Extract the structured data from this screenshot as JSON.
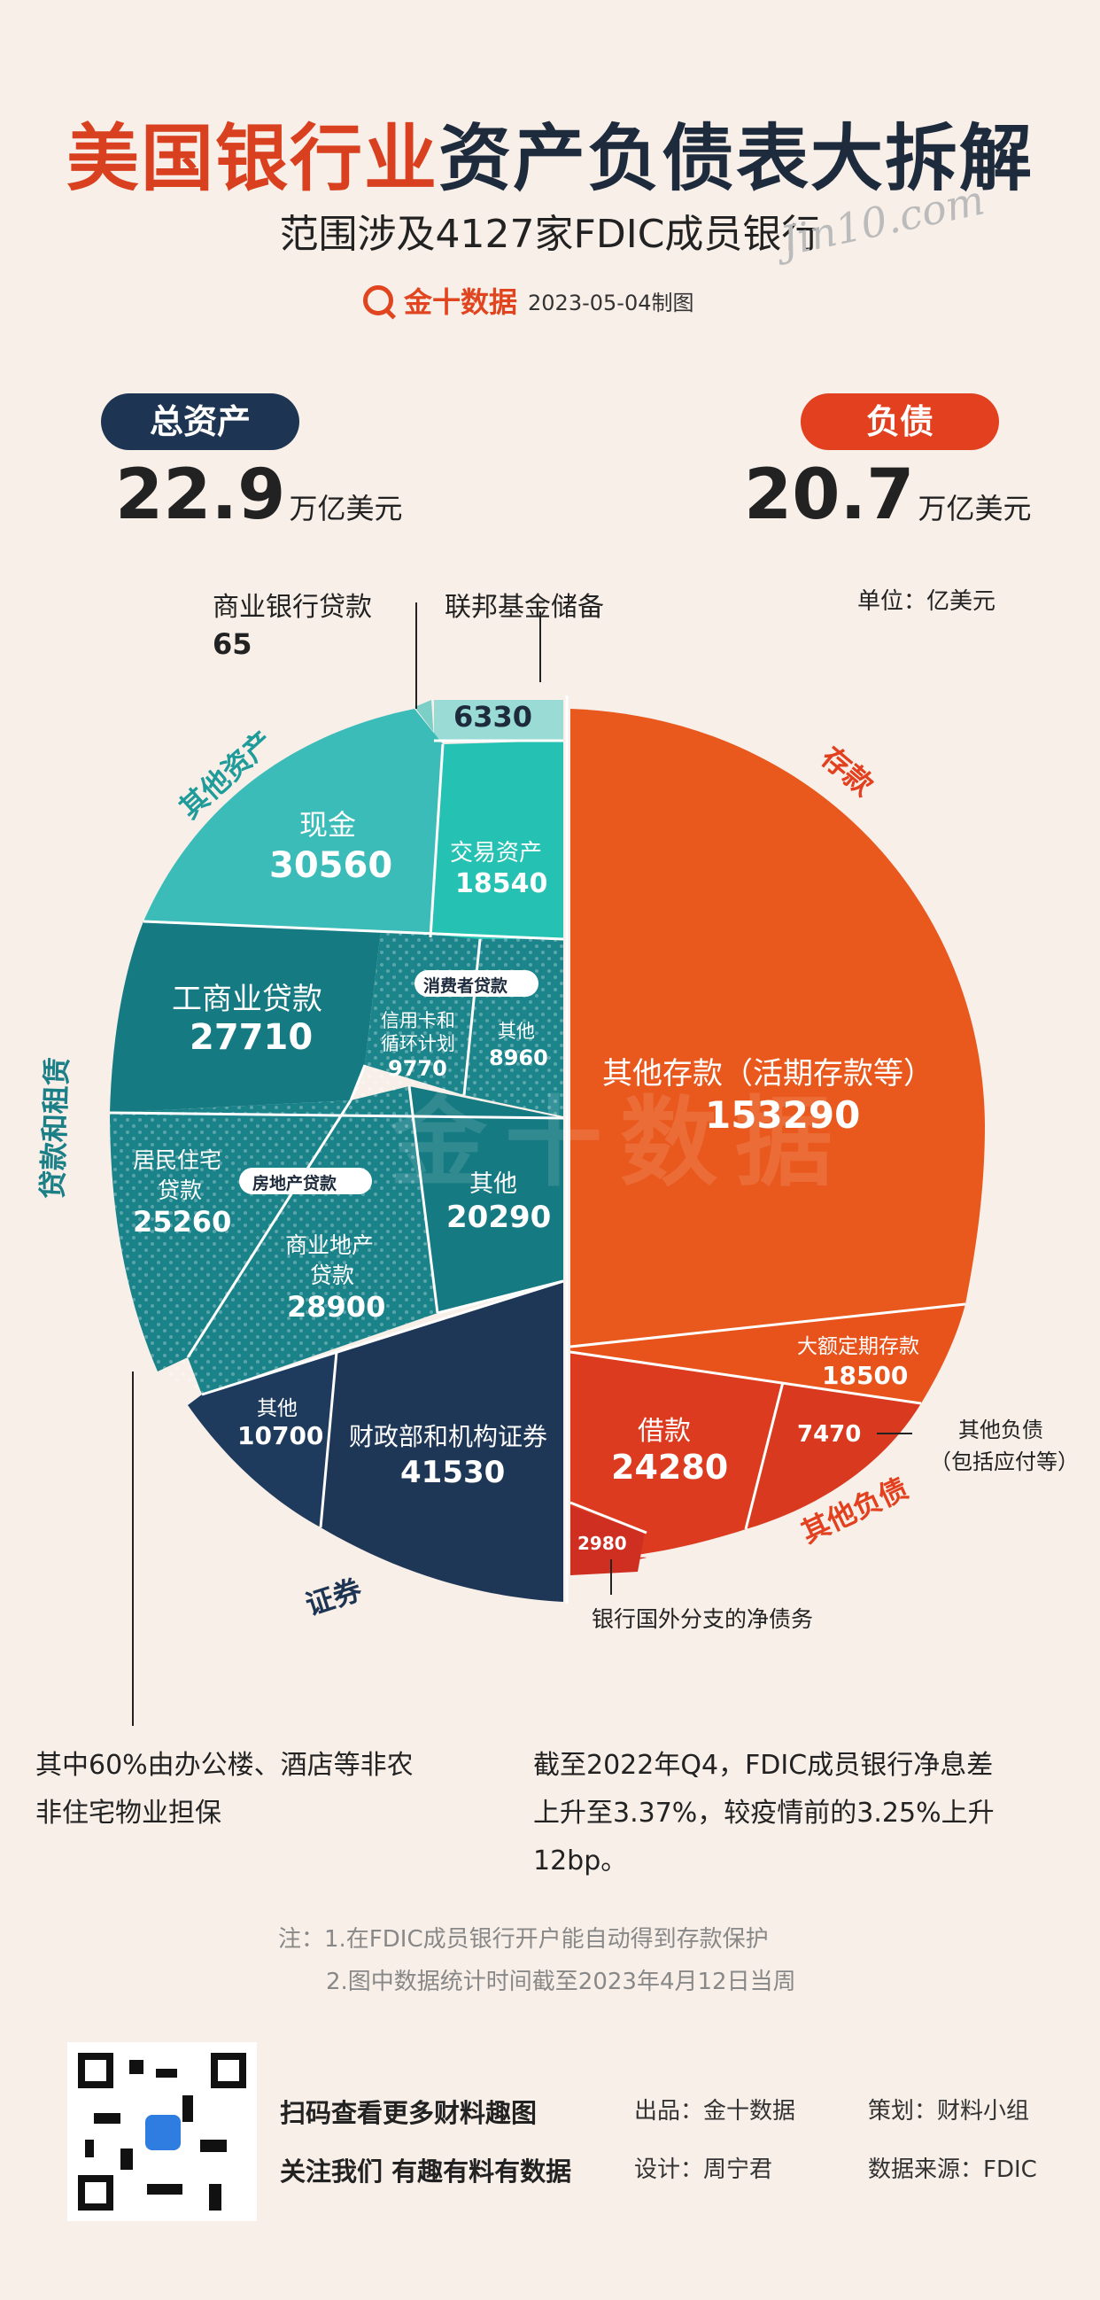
{
  "header": {
    "title_red": "美国银行业",
    "title_dark": "资产负债表大拆解",
    "subtitle": "范围涉及4127家FDIC成员银行",
    "brand": "金十数据",
    "date": "2023-05-04制图",
    "signature": "Jin10.com"
  },
  "summary": {
    "assets_label": "总资产",
    "assets_value": "22.9",
    "assets_unit": "万亿美元",
    "liabilities_label": "负债",
    "liabilities_value": "20.7",
    "liabilities_unit": "万亿美元",
    "unit_note": "单位：亿美元"
  },
  "chart_data": {
    "type": "pie",
    "unit": "亿美元",
    "assets": [
      {
        "group": "其他资产",
        "label": "联邦基金储备",
        "value": 6330,
        "color": "#9adbd5"
      },
      {
        "group": "其他资产",
        "label": "商业银行贷款",
        "value": 65,
        "color": "#7ccfc6"
      },
      {
        "group": "其他资产",
        "label": "现金",
        "value": 30560,
        "color": "#3cbcb8"
      },
      {
        "group": "其他资产",
        "label": "交易资产",
        "value": 18540,
        "color": "#25c2b4"
      },
      {
        "group": "贷款和租赁",
        "label": "工商业贷款",
        "value": 27710,
        "color": "#157a82"
      },
      {
        "group": "贷款和租赁",
        "label": "信用卡和循环计划",
        "value": 9770,
        "color": "#1b858b",
        "sub": "消费者贷款"
      },
      {
        "group": "贷款和租赁",
        "label": "其他",
        "value": 8960,
        "color": "#1b858b",
        "sub": "消费者贷款"
      },
      {
        "group": "贷款和租赁",
        "label": "居民住宅贷款",
        "value": 25260,
        "color": "#1a8289",
        "sub": "房地产贷款"
      },
      {
        "group": "贷款和租赁",
        "label": "商业地产贷款",
        "value": 28900,
        "color": "#1a8289",
        "sub": "房地产贷款"
      },
      {
        "group": "贷款和租赁",
        "label": "其他",
        "value": 20290,
        "color": "#167a82"
      },
      {
        "group": "证券",
        "label": "其他",
        "value": 10700,
        "color": "#1e3a5c"
      },
      {
        "group": "证券",
        "label": "财政部和机构证券",
        "value": 41530,
        "color": "#1f3756"
      }
    ],
    "liabilities": [
      {
        "group": "存款",
        "label": "其他存款（活期存款等）",
        "value": 153290,
        "color": "#e9581c"
      },
      {
        "group": "存款",
        "label": "大额定期存款",
        "value": 18500,
        "color": "#e8531c"
      },
      {
        "group": "其他负债",
        "label": "其他负债（包括应付等）",
        "value": 7470,
        "color": "#d93a1f"
      },
      {
        "group": "其他负债",
        "label": "借款",
        "value": 24280,
        "color": "#dd3b20"
      },
      {
        "group": "其他负债",
        "label": "银行国外分支的净债务",
        "value": 2980,
        "color": "#cf2f20"
      }
    ]
  },
  "slices": {
    "fedfunds_label": "联邦基金储备",
    "fedfunds_value": "6330",
    "cbloan_label": "商业银行贷款",
    "cbloan_value": "65",
    "cash_label": "现金",
    "cash_value": "30560",
    "trading_label": "交易资产",
    "trading_value": "18540",
    "ci_label": "工商业贷款",
    "ci_value": "27710",
    "consumer_tag": "消费者贷款",
    "credit_label1": "信用卡和",
    "credit_label2": "循环计划",
    "credit_value": "9770",
    "cons_other_label": "其他",
    "cons_other_value": "8960",
    "res_label1": "居民住宅",
    "res_label2": "贷款",
    "res_value": "25260",
    "re_tag": "房地产贷款",
    "cre_label1": "商业地产",
    "cre_label2": "贷款",
    "cre_value": "28900",
    "loan_other_label": "其他",
    "loan_other_value": "20290",
    "sec_other_label": "其他",
    "sec_other_value": "10700",
    "treasury_label": "财政部和机构证券",
    "treasury_value": "41530",
    "dep_other_label": "其他存款（活期存款等）",
    "dep_other_value": "153290",
    "cd_label": "大额定期存款",
    "cd_value": "18500",
    "borrow_label": "借款",
    "borrow_value": "24280",
    "oth_liab_value": "7470",
    "oth_liab_label1": "其他负债",
    "oth_liab_label2": "（包括应付等）",
    "foreign_value": "2980",
    "foreign_label": "银行国外分支的净债务"
  },
  "groups": {
    "other_assets": "其他资产",
    "loans": "贷款和租赁",
    "securities": "证券",
    "deposits": "存款",
    "other_liab": "其他负债"
  },
  "notes": {
    "left1": "其中60%由办公楼、酒店等非农",
    "left2": "非住宅物业担保",
    "right1": "截至2022年Q4，FDIC成员银行净息差",
    "right2": "上升至3.37%，较疫情前的3.25%上升",
    "right3": "12bp。",
    "fn1": "注：1.在FDIC成员银行开户能自动得到存款保护",
    "fn2": "2.图中数据统计时间截至2023年4月12日当周"
  },
  "footer": {
    "scan": "扫码查看更多财料趣图",
    "follow": "关注我们 有趣有料有数据",
    "producer": "出品：金十数据",
    "planner": "策划：财料小组",
    "designer": "设计：周宁君",
    "source": "数据来源：FDIC"
  },
  "watermark": "金十数据"
}
